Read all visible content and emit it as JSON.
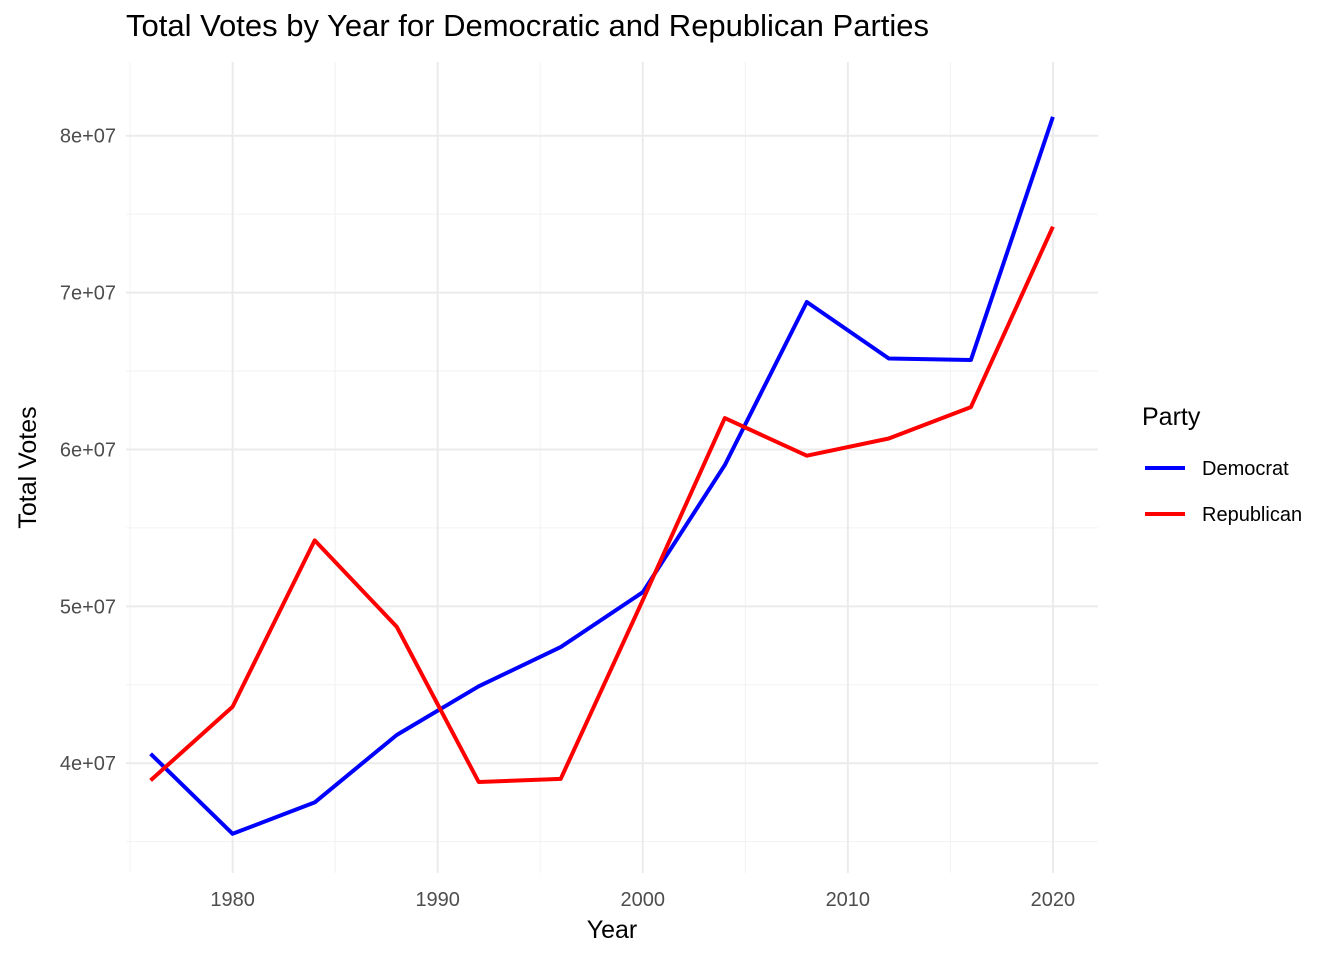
{
  "chart_data": {
    "type": "line",
    "title": "Total Votes by Year for Democratic and Republican Parties",
    "xlabel": "Year",
    "ylabel": "Total Votes",
    "x": [
      1976,
      1980,
      1984,
      1988,
      1992,
      1996,
      2000,
      2004,
      2008,
      2012,
      2016,
      2020
    ],
    "xlim": [
      1974.8,
      2022.2
    ],
    "ylim": [
      33000000,
      84700000
    ],
    "x_ticks": [
      1980,
      1990,
      2000,
      2010,
      2020
    ],
    "x_tick_labels": [
      "1980",
      "1990",
      "2000",
      "2010",
      "2020"
    ],
    "x_minor_ticks": [
      1975,
      1985,
      1995,
      2005,
      2015
    ],
    "y_ticks": [
      40000000,
      50000000,
      60000000,
      70000000,
      80000000
    ],
    "y_tick_labels": [
      "4e+07",
      "5e+07",
      "6e+07",
      "7e+07",
      "8e+07"
    ],
    "y_minor_ticks": [
      35000000,
      45000000,
      55000000,
      65000000,
      75000000
    ],
    "grid": true,
    "legend": {
      "title": "Party",
      "position": "right"
    },
    "series": [
      {
        "name": "Democrat",
        "color": "#0000ff",
        "values": [
          40600000,
          35500000,
          37500000,
          41800000,
          44900000,
          47400000,
          50900000,
          59000000,
          69400000,
          65800000,
          65700000,
          81200000
        ]
      },
      {
        "name": "Republican",
        "color": "#ff0000",
        "values": [
          38900000,
          43600000,
          54200000,
          48700000,
          38800000,
          39000000,
          50400000,
          62000000,
          59600000,
          60700000,
          62700000,
          74200000
        ]
      }
    ]
  }
}
